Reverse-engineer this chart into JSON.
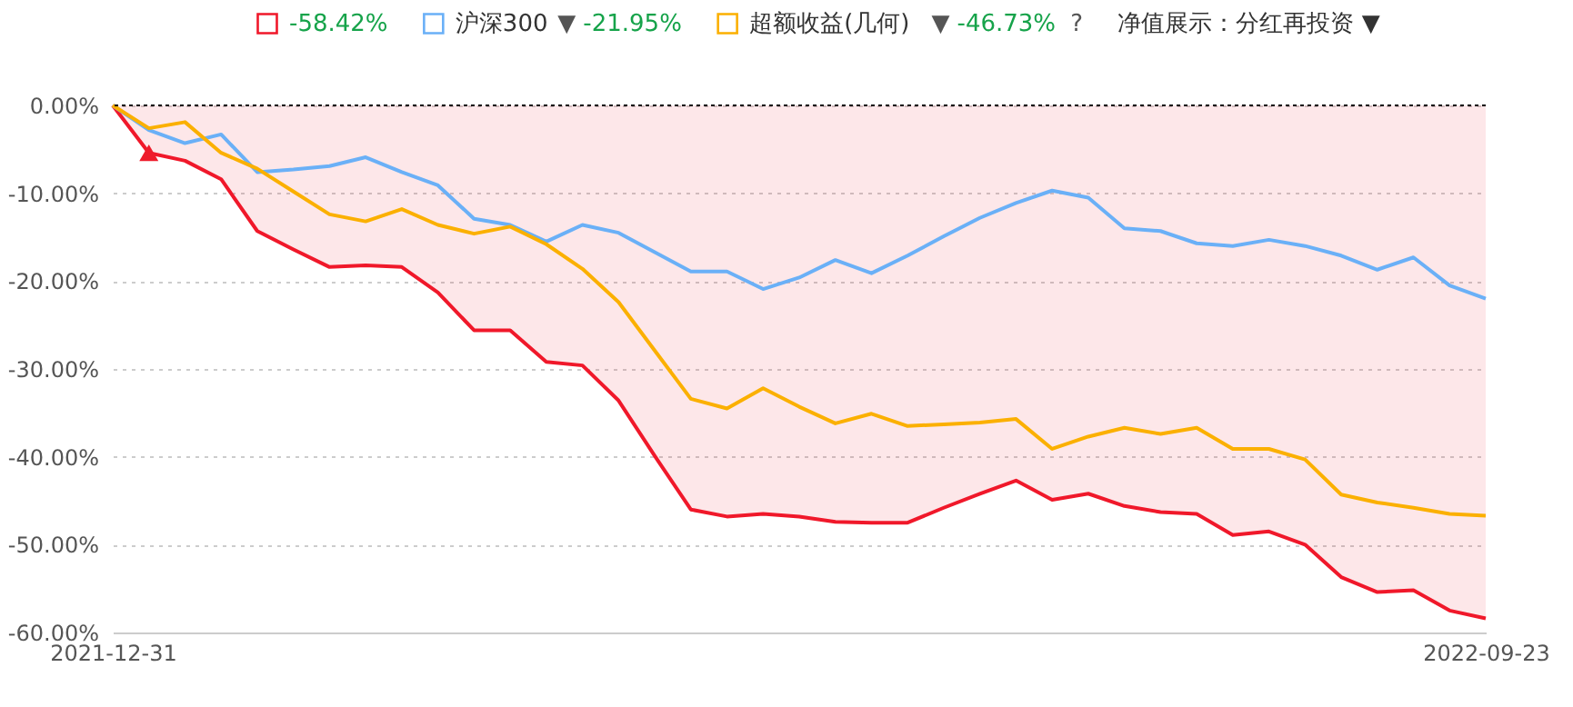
{
  "chart_data": {
    "type": "line",
    "categories": [
      "2021-12-31",
      null,
      null,
      null,
      null,
      null,
      null,
      null,
      null,
      null,
      null,
      null,
      null,
      null,
      null,
      null,
      null,
      null,
      null,
      null,
      null,
      null,
      null,
      null,
      null,
      null,
      null,
      null,
      null,
      null,
      null,
      null,
      null,
      null,
      null,
      null,
      null,
      null,
      "2022-09-23"
    ],
    "series": [
      {
        "type": "area",
        "color": "#f0182a",
        "values": [
          0,
          -5.4,
          -6.3,
          -8.4,
          -14.3,
          -16.4,
          -18.4,
          -18.2,
          -18.4,
          -21.3,
          -25.6,
          -25.6,
          -29.2,
          -29.6,
          -33.6,
          -39.9,
          -46.0,
          -46.8,
          -46.5,
          -46.8,
          -47.4,
          -47.5,
          -47.5,
          -45.8,
          -44.2,
          -42.7,
          -44.9,
          -44.2,
          -45.6,
          -46.3,
          -46.5,
          -48.9,
          -48.5,
          -50.0,
          -53.7,
          -55.4,
          -55.2,
          -57.5,
          -58.4
        ]
      },
      {
        "name": "沪深300",
        "color": "#6ab0f7",
        "values": [
          0,
          -2.8,
          -4.3,
          -3.3,
          -7.6,
          -7.3,
          -6.9,
          -5.9,
          -7.6,
          -9.1,
          -12.9,
          -13.6,
          -15.5,
          -13.6,
          -14.5,
          -16.7,
          -18.9,
          -18.9,
          -20.9,
          -19.6,
          -17.6,
          -19.1,
          -17.1,
          -14.9,
          -12.8,
          -11.1,
          -9.7,
          -10.5,
          -14.0,
          -14.3,
          -15.7,
          -16.0,
          -15.3,
          -16.0,
          -17.1,
          -18.7,
          -17.3,
          -20.5,
          -22.0
        ]
      },
      {
        "name": "超额收益(几何)",
        "color": "#fbb000",
        "values": [
          0,
          -2.6,
          -1.9,
          -5.4,
          -7.2,
          -9.8,
          -12.4,
          -13.2,
          -11.8,
          -13.6,
          -14.6,
          -13.8,
          -15.8,
          -18.6,
          -22.4,
          -27.9,
          -33.4,
          -34.5,
          -32.2,
          -34.3,
          -36.2,
          -35.1,
          -36.5,
          -36.3,
          -36.1,
          -35.7,
          -39.1,
          -37.7,
          -36.7,
          -37.4,
          -36.7,
          -39.1,
          -39.1,
          -40.3,
          -44.3,
          -45.2,
          -45.8,
          -46.5,
          -46.7
        ]
      },
      {
        "type": "scatter",
        "marker": "triangle",
        "color": "#ee1c2c",
        "values": [
          null,
          -5.4,
          null,
          null,
          null,
          null,
          null,
          null,
          null,
          null,
          null,
          null,
          null,
          null,
          null,
          null,
          null,
          null,
          null,
          null,
          null,
          null,
          null,
          null,
          null,
          null,
          null,
          null,
          null,
          null,
          null,
          null,
          null,
          null,
          null,
          null,
          null,
          null,
          null
        ]
      }
    ],
    "ylim": [
      -60,
      0
    ],
    "yticks": [
      {
        "value": 0,
        "label": "0.00%"
      },
      {
        "value": -10,
        "label": "-10.00%"
      },
      {
        "value": -20,
        "label": "-20.00%"
      },
      {
        "value": -30,
        "label": "-30.00%"
      },
      {
        "value": -40,
        "label": "-40.00%"
      },
      {
        "value": -50,
        "label": "-50.00%"
      },
      {
        "value": -60,
        "label": "-60.00%"
      }
    ],
    "grid": "y",
    "ref_lines": [
      {
        "axis": "y",
        "value": 0,
        "color": "#000000",
        "line_style": "dotted"
      }
    ],
    "legend": "top left",
    "line_style": "solid",
    "annotations": [
      "-58.42%",
      "▼ -21.95%",
      "▼ -46.73% ?",
      "净值展示：分红再投资 ▼"
    ]
  }
}
